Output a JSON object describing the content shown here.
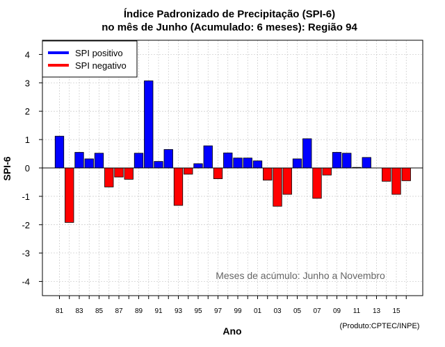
{
  "chart_data": {
    "type": "bar",
    "title_line1": "Índice Padronizado de Precipitação (SPI-6)",
    "title_line2": "no mês de Junho (Acumulado: 6 meses): Região 94",
    "xlabel": "Ano",
    "ylabel": "SPI-6",
    "ylim": [
      -4.5,
      4.5
    ],
    "yticks": [
      "-4",
      "-3",
      "-2",
      "-1",
      "0",
      "1",
      "2",
      "3",
      "4"
    ],
    "ytick_values": [
      -4,
      -3,
      -2,
      -1,
      0,
      1,
      2,
      3,
      4
    ],
    "xtick_labels": [
      "81",
      "83",
      "85",
      "87",
      "89",
      "91",
      "93",
      "95",
      "97",
      "99",
      "01",
      "03",
      "05",
      "07",
      "09",
      "11",
      "13",
      "15"
    ],
    "years": [
      1981,
      1982,
      1983,
      1984,
      1985,
      1986,
      1987,
      1988,
      1989,
      1990,
      1991,
      1992,
      1993,
      1994,
      1995,
      1996,
      1997,
      1998,
      1999,
      2000,
      2001,
      2002,
      2003,
      2004,
      2005,
      2006,
      2007,
      2008,
      2009,
      2010,
      2011,
      2012,
      2013,
      2014,
      2015,
      2016
    ],
    "values": [
      1.12,
      -1.92,
      0.55,
      0.32,
      0.52,
      -0.67,
      -0.32,
      -0.4,
      0.52,
      3.07,
      0.23,
      0.65,
      -1.32,
      -0.22,
      0.15,
      0.78,
      -0.38,
      0.53,
      0.35,
      0.35,
      0.25,
      -0.43,
      -1.35,
      -0.93,
      0.32,
      1.03,
      -1.07,
      -0.25,
      0.55,
      0.52,
      0.02,
      0.37,
      0,
      -0.47,
      -0.93,
      -0.45
    ],
    "legend": [
      {
        "label": "SPI positivo",
        "color": "#0000ff"
      },
      {
        "label": "SPI negativo",
        "color": "#ff0000"
      }
    ],
    "annotation": "Meses de acúmulo: Junho a Novembro",
    "credit": "(Produto:CPTEC/INPE)",
    "colors": {
      "positive": "#0000ff",
      "negative": "#ff0000",
      "grid": "#c8c8c8"
    }
  }
}
